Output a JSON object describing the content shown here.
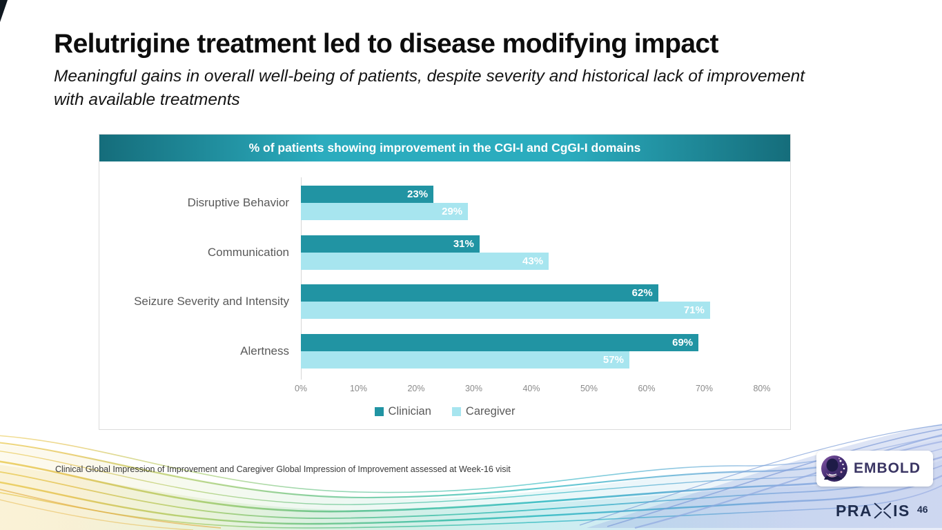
{
  "slide": {
    "title": "Relutrigine treatment led to disease modifying impact",
    "subtitle": "Meaningful gains in overall well-being of patients, despite severity and historical lack of improvement with available treatments",
    "footnote": "Clinical Global Impression of Improvement and Caregiver Global Impression of Improvement assessed at Week-16 visit",
    "page_number": "46"
  },
  "chart_data": {
    "type": "bar",
    "orientation": "horizontal",
    "title": "% of patients showing improvement in the CGI-I and CgGI-I domains",
    "categories": [
      "Disruptive Behavior",
      "Communication",
      "Seizure Severity and Intensity",
      "Alertness"
    ],
    "series": [
      {
        "name": "Clinician",
        "color": "#2194A3",
        "values": [
          23,
          31,
          62,
          69
        ]
      },
      {
        "name": "Caregiver",
        "color": "#A7E5EF",
        "values": [
          29,
          43,
          71,
          57
        ]
      }
    ],
    "value_suffix": "%",
    "x_ticks": [
      "0%",
      "10%",
      "20%",
      "30%",
      "40%",
      "50%",
      "60%",
      "70%",
      "80%"
    ],
    "xlim": [
      0,
      80
    ],
    "legend_position": "bottom",
    "gridlines": false
  },
  "branding": {
    "embold_label": "EMBOLD",
    "praxis_pre": "PRA",
    "praxis_post": "IS"
  },
  "colors": {
    "clinician": "#2194A3",
    "caregiver": "#A7E5EF",
    "banner_dark": "#156D7B",
    "banner_light": "#2BACBE",
    "navy": "#1F2D4E",
    "embold_purple": "#3A3563"
  }
}
